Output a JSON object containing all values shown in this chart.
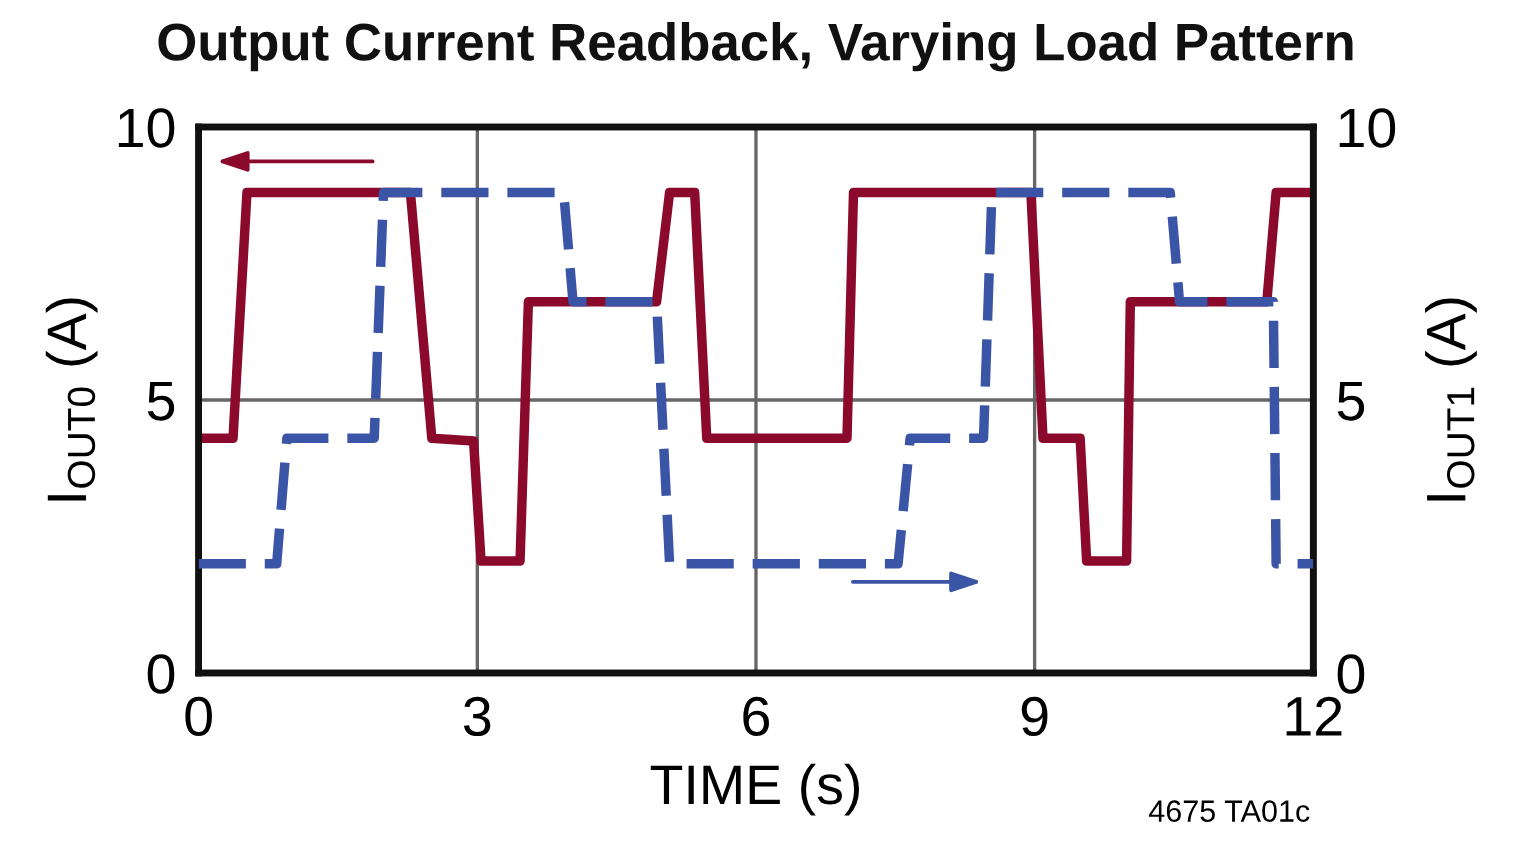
{
  "chart_data": {
    "type": "line",
    "title": "Output Current Readback, Varying Load Pattern",
    "xlabel": "TIME (s)",
    "ylabel": "I$_{OUT0}$ (A)",
    "y2label": "I$_{OUT1}$ (A)",
    "annotations": [
      "4675 TA01c"
    ],
    "xlim": [
      0,
      12
    ],
    "xticks": [
      0,
      3,
      6,
      9,
      12
    ],
    "ylim": [
      0,
      10
    ],
    "yticks": [
      0,
      5,
      10
    ],
    "y2lim": [
      0,
      10
    ],
    "y2ticks": [
      0,
      5,
      10
    ],
    "grid": true,
    "series": [
      {
        "color": "#8b0a2c",
        "line_style": "solid",
        "x": [
          0,
          0.37,
          0.52,
          2.28,
          2.51,
          2.96,
          3.04,
          3.46,
          3.55,
          4.93,
          5.07,
          5.34,
          5.47,
          6.98,
          7.05,
          8.96,
          9.09,
          9.49,
          9.56,
          9.99,
          10.03,
          11.5,
          11.6,
          12
        ],
        "values": [
          4.3,
          4.3,
          8.8,
          8.8,
          4.3,
          4.25,
          2.05,
          2.05,
          6.8,
          6.8,
          8.8,
          8.8,
          4.3,
          4.3,
          8.8,
          8.8,
          4.3,
          4.3,
          2.05,
          2.05,
          6.8,
          6.8,
          8.8,
          8.8
        ]
      },
      {
        "color": "#3b55a6",
        "line_style": "dashed",
        "axis": "y2",
        "x": [
          0,
          0.84,
          0.95,
          1.89,
          1.99,
          3.93,
          4.03,
          4.93,
          5.07,
          7.53,
          7.66,
          8.45,
          8.54,
          10.46,
          10.56,
          11.57,
          11.6,
          12
        ],
        "values": [
          2.0,
          2.0,
          4.3,
          4.3,
          8.8,
          8.8,
          6.8,
          6.8,
          2.0,
          2.0,
          4.3,
          4.3,
          8.8,
          8.8,
          6.8,
          6.8,
          2.0,
          2.0
        ]
      }
    ]
  }
}
